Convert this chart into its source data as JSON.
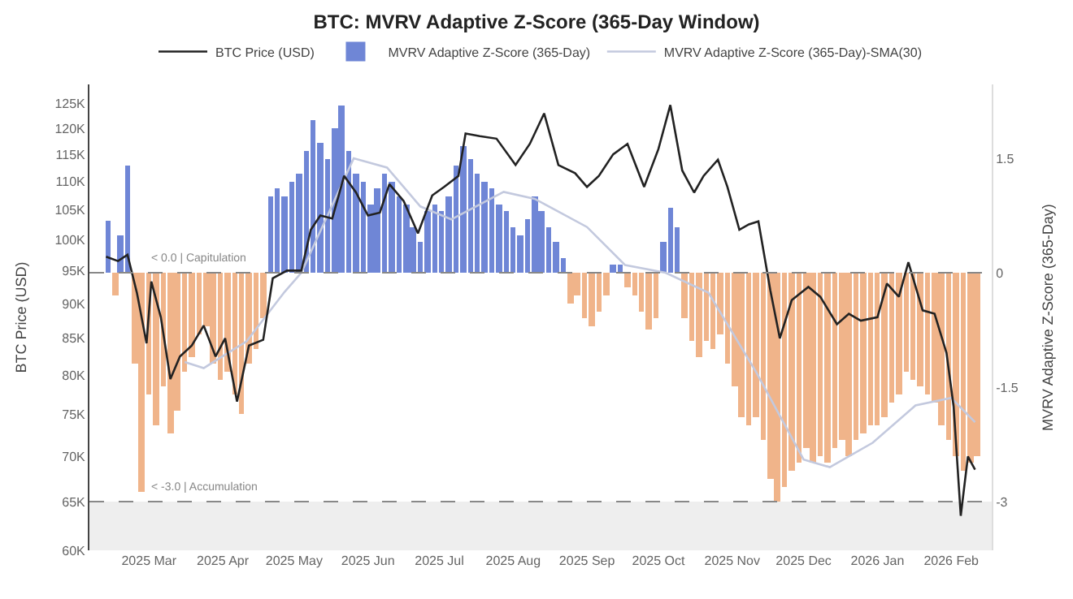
{
  "chart_data": {
    "type": "bar",
    "title": "BTC: MVRV Adaptive Z-Score (365-Day Window)",
    "ylabel": "BTC Price (USD)",
    "y2label": "MVRV Adaptive Z-Score (365-Day)",
    "log": "y",
    "legend": "top",
    "xlim": [
      "2025-02-04",
      "2026-02-18"
    ],
    "xticks": [
      {
        "value": "2025-03-01",
        "label": "2025 Mar"
      },
      {
        "value": "2025-04-01",
        "label": "2025 Apr"
      },
      {
        "value": "2025-05-01",
        "label": "2025 May"
      },
      {
        "value": "2025-06-01",
        "label": "2025 Jun"
      },
      {
        "value": "2025-07-01",
        "label": "2025 Jul"
      },
      {
        "value": "2025-08-01",
        "label": "2025 Aug"
      },
      {
        "value": "2025-09-01",
        "label": "2025 Sep"
      },
      {
        "value": "2025-10-01",
        "label": "2025 Oct"
      },
      {
        "value": "2025-11-01",
        "label": "2025 Nov"
      },
      {
        "value": "2025-12-01",
        "label": "2025 Dec"
      },
      {
        "value": "2026-01-01",
        "label": "2026 Jan"
      },
      {
        "value": "2026-02-01",
        "label": "2026 Feb"
      }
    ],
    "ylim": [
      60000,
      129000
    ],
    "yticks": [
      {
        "value": 60000,
        "label": "60K"
      },
      {
        "value": 65000,
        "label": "65K"
      },
      {
        "value": 70000,
        "label": "70K"
      },
      {
        "value": 75000,
        "label": "75K"
      },
      {
        "value": 80000,
        "label": "80K"
      },
      {
        "value": 85000,
        "label": "85K"
      },
      {
        "value": 90000,
        "label": "90K"
      },
      {
        "value": 95000,
        "label": "95K"
      },
      {
        "value": 100000,
        "label": "100K"
      },
      {
        "value": 105000,
        "label": "105K"
      },
      {
        "value": 110000,
        "label": "110K"
      },
      {
        "value": 115000,
        "label": "115K"
      },
      {
        "value": 120000,
        "label": "120K"
      },
      {
        "value": 125000,
        "label": "125K"
      }
    ],
    "y2lim": [
      -3.64,
      2.47
    ],
    "y2ticks": [
      -3,
      -1.5,
      0,
      1.5
    ],
    "ref_lines": [
      {
        "axis": "y2",
        "value": 0,
        "label": "< 0.0 | Capitulation",
        "color": "#888888",
        "line_style": "dashed"
      },
      {
        "axis": "y2",
        "value": -3,
        "label": "< -3.0 | Accumulation",
        "color": "#888888",
        "line_style": "dashed"
      }
    ],
    "bands": [
      {
        "axis": "y2",
        "from": -3.64,
        "to": -3,
        "color": "#eeeeee"
      }
    ],
    "series": [
      {
        "name": "BTC Price (USD)",
        "type": "line",
        "color": "#222222",
        "line_style": "solid",
        "x": [
          "2025-02-11",
          "2025-02-16",
          "2025-02-20",
          "2025-02-24",
          "2025-02-28",
          "2025-03-02",
          "2025-03-06",
          "2025-03-10",
          "2025-03-14",
          "2025-03-19",
          "2025-03-24",
          "2025-03-29",
          "2025-04-02",
          "2025-04-07",
          "2025-04-12",
          "2025-04-18",
          "2025-04-22",
          "2025-04-28",
          "2025-05-04",
          "2025-05-08",
          "2025-05-12",
          "2025-05-17",
          "2025-05-22",
          "2025-05-27",
          "2025-06-01",
          "2025-06-06",
          "2025-06-10",
          "2025-06-16",
          "2025-06-22",
          "2025-06-28",
          "2025-07-03",
          "2025-07-09",
          "2025-07-12",
          "2025-07-18",
          "2025-07-25",
          "2025-08-02",
          "2025-08-08",
          "2025-08-14",
          "2025-08-20",
          "2025-08-27",
          "2025-09-01",
          "2025-09-06",
          "2025-09-12",
          "2025-09-18",
          "2025-09-25",
          "2025-10-01",
          "2025-10-06",
          "2025-10-11",
          "2025-10-16",
          "2025-10-20",
          "2025-10-26",
          "2025-10-30",
          "2025-11-04",
          "2025-11-08",
          "2025-11-12",
          "2025-11-17",
          "2025-11-21",
          "2025-11-26",
          "2025-12-03",
          "2025-12-08",
          "2025-12-15",
          "2025-12-20",
          "2025-12-25",
          "2026-01-01",
          "2026-01-05",
          "2026-01-10",
          "2026-01-14",
          "2026-01-20",
          "2026-01-25",
          "2026-01-30",
          "2026-02-02",
          "2026-02-05",
          "2026-02-08",
          "2026-02-11"
        ],
        "values": [
          97200,
          96500,
          97500,
          91500,
          84300,
          93300,
          88000,
          79500,
          82500,
          84000,
          86800,
          82500,
          85000,
          76600,
          84000,
          84800,
          93800,
          95000,
          95000,
          101600,
          104000,
          103500,
          111000,
          108000,
          104000,
          104500,
          109500,
          106500,
          101000,
          107500,
          109000,
          111000,
          119000,
          118500,
          118000,
          113000,
          117000,
          123000,
          113000,
          111500,
          109000,
          111000,
          115000,
          117000,
          109000,
          116000,
          124700,
          112000,
          108000,
          111000,
          114000,
          109000,
          101600,
          102500,
          103000,
          92000,
          85000,
          90500,
          92500,
          91000,
          87000,
          88500,
          87500,
          88000,
          93000,
          91000,
          96300,
          89000,
          88500,
          83000,
          76000,
          63500,
          70000,
          68500
        ]
      },
      {
        "name": "MVRV Adaptive Z-Score (365-Day)",
        "axis": "y2",
        "color": "#6f86d6",
        "x": [
          "2025-02-12",
          "2025-02-15",
          "2025-02-17",
          "2025-02-20",
          "2025-02-23",
          "2025-02-26",
          "2025-03-01",
          "2025-03-04",
          "2025-03-07",
          "2025-03-10",
          "2025-03-13",
          "2025-03-16",
          "2025-03-19",
          "2025-03-22",
          "2025-03-25",
          "2025-03-28",
          "2025-03-31",
          "2025-04-03",
          "2025-04-06",
          "2025-04-09",
          "2025-04-12",
          "2025-04-15",
          "2025-04-18",
          "2025-04-21",
          "2025-04-24",
          "2025-04-27",
          "2025-04-30",
          "2025-05-03",
          "2025-05-06",
          "2025-05-09",
          "2025-05-12",
          "2025-05-15",
          "2025-05-18",
          "2025-05-21",
          "2025-05-24",
          "2025-05-27",
          "2025-05-30",
          "2025-06-02",
          "2025-06-05",
          "2025-06-08",
          "2025-06-11",
          "2025-06-14",
          "2025-06-17",
          "2025-06-20",
          "2025-06-23",
          "2025-06-26",
          "2025-06-29",
          "2025-07-02",
          "2025-07-05",
          "2025-07-08",
          "2025-07-11",
          "2025-07-14",
          "2025-07-17",
          "2025-07-20",
          "2025-07-23",
          "2025-07-26",
          "2025-07-29",
          "2025-08-01",
          "2025-08-04",
          "2025-08-07",
          "2025-08-10",
          "2025-08-13",
          "2025-08-16",
          "2025-08-19",
          "2025-08-22",
          "2025-08-25",
          "2025-08-28",
          "2025-08-31",
          "2025-09-03",
          "2025-09-06",
          "2025-09-09",
          "2025-09-12",
          "2025-09-15",
          "2025-09-18",
          "2025-09-21",
          "2025-09-24",
          "2025-09-27",
          "2025-09-30",
          "2025-10-03",
          "2025-10-06",
          "2025-10-09",
          "2025-10-12",
          "2025-10-15",
          "2025-10-18",
          "2025-10-21",
          "2025-10-24",
          "2025-10-27",
          "2025-10-30",
          "2025-11-02",
          "2025-11-05",
          "2025-11-08",
          "2025-11-11",
          "2025-11-14",
          "2025-11-17",
          "2025-11-20",
          "2025-11-23",
          "2025-11-26",
          "2025-11-29",
          "2025-12-02",
          "2025-12-05",
          "2025-12-08",
          "2025-12-11",
          "2025-12-14",
          "2025-12-17",
          "2025-12-20",
          "2025-12-23",
          "2025-12-26",
          "2025-12-29",
          "2026-01-01",
          "2026-01-04",
          "2026-01-07",
          "2026-01-10",
          "2026-01-13",
          "2026-01-16",
          "2026-01-19",
          "2026-01-22",
          "2026-01-25",
          "2026-01-28",
          "2026-01-31",
          "2026-02-03",
          "2026-02-06",
          "2026-02-09",
          "2026-02-12"
        ],
        "values": [
          0.68,
          -0.3,
          0.5,
          1.4,
          -1.2,
          -2.87,
          -1.6,
          -2.0,
          -1.5,
          -2.1,
          -1.8,
          -1.3,
          -1.1,
          -0.8,
          -0.7,
          -1.2,
          -1.4,
          -1.3,
          -1.6,
          -1.85,
          -1.2,
          -1.0,
          -0.6,
          1.0,
          1.1,
          1.0,
          1.2,
          1.3,
          1.6,
          2.0,
          1.7,
          1.5,
          1.9,
          2.2,
          1.6,
          1.3,
          1.2,
          0.9,
          1.1,
          1.3,
          1.2,
          1.0,
          0.9,
          0.6,
          0.4,
          0.8,
          0.9,
          0.8,
          1.0,
          1.4,
          1.66,
          1.5,
          1.3,
          1.2,
          1.1,
          0.9,
          0.8,
          0.6,
          0.5,
          0.7,
          1.0,
          0.8,
          0.6,
          0.4,
          0.2,
          -0.4,
          -0.3,
          -0.6,
          -0.7,
          -0.5,
          -0.3,
          0.1,
          0.1,
          -0.2,
          -0.3,
          -0.5,
          -0.75,
          -0.6,
          0.4,
          0.85,
          0.6,
          -0.6,
          -0.9,
          -1.1,
          -0.9,
          -1.0,
          -0.8,
          -1.2,
          -1.5,
          -1.9,
          -2.0,
          -1.9,
          -2.2,
          -2.7,
          -3.0,
          -2.8,
          -2.6,
          -2.5,
          -2.3,
          -2.5,
          -2.4,
          -2.5,
          -2.3,
          -2.2,
          -2.4,
          -2.2,
          -2.1,
          -2.0,
          -2.0,
          -1.9,
          -1.7,
          -1.6,
          -1.3,
          -1.4,
          -1.5,
          -1.6,
          -1.7,
          -2.0,
          -2.2,
          -2.4,
          -2.6,
          -2.5,
          -2.4
        ],
        "colors": [
          "#6f86d6",
          "#f0b48a",
          "#6f86d6",
          "#6f86d6",
          "#f0b48a",
          "#f0b48a",
          "#f0b48a",
          "#f0b48a",
          "#f0b48a",
          "#f0b48a",
          "#f0b48a",
          "#f0b48a",
          "#f0b48a",
          "#f0b48a",
          "#f0b48a",
          "#f0b48a",
          "#f0b48a",
          "#f0b48a",
          "#f0b48a",
          "#f0b48a",
          "#f0b48a",
          "#f0b48a",
          "#f0b48a",
          "#6f86d6",
          "#6f86d6",
          "#6f86d6",
          "#6f86d6",
          "#6f86d6",
          "#6f86d6",
          "#6f86d6",
          "#6f86d6",
          "#6f86d6",
          "#6f86d6",
          "#6f86d6",
          "#6f86d6",
          "#6f86d6",
          "#6f86d6",
          "#6f86d6",
          "#6f86d6",
          "#6f86d6",
          "#6f86d6",
          "#6f86d6",
          "#6f86d6",
          "#6f86d6",
          "#6f86d6",
          "#6f86d6",
          "#6f86d6",
          "#6f86d6",
          "#6f86d6",
          "#6f86d6",
          "#6f86d6",
          "#6f86d6",
          "#6f86d6",
          "#6f86d6",
          "#6f86d6",
          "#6f86d6",
          "#6f86d6",
          "#6f86d6",
          "#6f86d6",
          "#6f86d6",
          "#6f86d6",
          "#6f86d6",
          "#6f86d6",
          "#6f86d6",
          "#6f86d6",
          "#f0b48a",
          "#f0b48a",
          "#f0b48a",
          "#f0b48a",
          "#f0b48a",
          "#f0b48a",
          "#6f86d6",
          "#6f86d6",
          "#f0b48a",
          "#f0b48a",
          "#f0b48a",
          "#f0b48a",
          "#f0b48a",
          "#6f86d6",
          "#6f86d6",
          "#6f86d6",
          "#f0b48a",
          "#f0b48a",
          "#f0b48a",
          "#f0b48a",
          "#f0b48a",
          "#f0b48a",
          "#f0b48a",
          "#f0b48a",
          "#f0b48a",
          "#f0b48a",
          "#f0b48a",
          "#f0b48a",
          "#f0b48a",
          "#f0b48a",
          "#f0b48a",
          "#f0b48a",
          "#f0b48a",
          "#f0b48a",
          "#f0b48a",
          "#f0b48a",
          "#f0b48a",
          "#f0b48a",
          "#f0b48a",
          "#f0b48a",
          "#f0b48a",
          "#f0b48a",
          "#f0b48a",
          "#f0b48a",
          "#f0b48a",
          "#f0b48a",
          "#f0b48a",
          "#f0b48a",
          "#f0b48a",
          "#f0b48a",
          "#f0b48a",
          "#f0b48a",
          "#f0b48a",
          "#f0b48a",
          "#f0b48a",
          "#f0b48a",
          "#f0b48a",
          "#f0b48a"
        ]
      },
      {
        "name": "MVRV Adaptive Z-Score (365-Day)-SMA(30)",
        "type": "line",
        "axis": "y2",
        "color": "#c3c9de",
        "line_style": "solid",
        "x": [
          "2025-03-16",
          "2025-03-24",
          "2025-04-11",
          "2025-04-27",
          "2025-05-04",
          "2025-05-26",
          "2025-06-09",
          "2025-06-23",
          "2025-07-06",
          "2025-07-28",
          "2025-08-10",
          "2025-09-01",
          "2025-09-17",
          "2025-10-04",
          "2025-10-22",
          "2025-11-11",
          "2025-12-01",
          "2025-12-12",
          "2025-12-30",
          "2026-01-17",
          "2026-02-01",
          "2026-02-11"
        ],
        "values": [
          -1.17,
          -1.25,
          -0.9,
          -0.25,
          0.0,
          1.5,
          1.38,
          0.87,
          0.7,
          1.06,
          0.97,
          0.6,
          0.1,
          0.0,
          -0.26,
          -1.3,
          -2.45,
          -2.55,
          -2.23,
          -1.74,
          -1.64,
          -1.96
        ]
      }
    ]
  }
}
